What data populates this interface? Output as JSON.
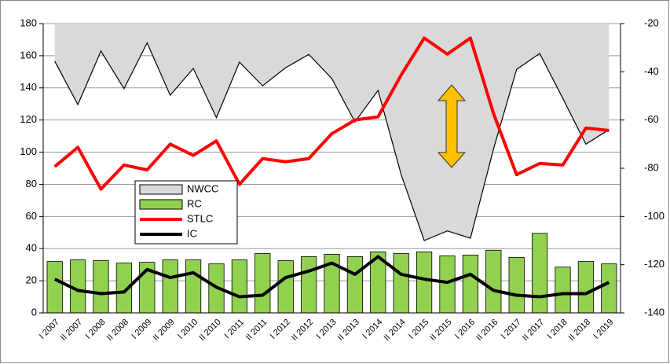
{
  "chart_data": {
    "type": "combo",
    "categories": [
      "I 2007",
      "II 2007",
      "I 2008",
      "II 2008",
      "I 2009",
      "II 2009",
      "I 2010",
      "II 2010",
      "I 2011",
      "II 2011",
      "I 2012",
      "II 2012",
      "I 2013",
      "II 2013",
      "I 2014",
      "II 2014",
      "I 2015",
      "II 2015",
      "I 2016",
      "II 2016",
      "I 2017",
      "II 2017",
      "I 2018",
      "II 2018",
      "I 2019"
    ],
    "series": [
      {
        "name": "NWCC",
        "type": "area",
        "axis": "y2",
        "color": "#d9d9d9",
        "values": [
          -35.6,
          -53.6,
          -31.4,
          -47,
          -28,
          -49.7,
          -38.6,
          -59,
          -36,
          -45.8,
          -38.3,
          -32.8,
          -42.8,
          -60.8,
          -47.7,
          -82.6,
          -110,
          -106,
          -109,
          -72,
          -39,
          -32.4,
          -51,
          -70,
          -64
        ]
      },
      {
        "name": "RC",
        "type": "bar",
        "color": "#92d050",
        "values": [
          32,
          33,
          32.5,
          31,
          31.5,
          33,
          33,
          30.5,
          33,
          37,
          32.5,
          35,
          36.5,
          35,
          38,
          37,
          38,
          35.5,
          36,
          39,
          34.5,
          49.5,
          28.5,
          32,
          30.5
        ]
      },
      {
        "name": "STLC",
        "type": "line",
        "color": "#ff0000",
        "values": [
          91,
          103,
          77,
          92,
          89,
          105,
          98,
          107,
          80,
          96,
          94,
          96,
          111.5,
          120,
          122,
          148,
          171,
          161,
          171,
          124,
          86,
          93,
          92,
          115,
          113.5
        ]
      },
      {
        "name": "IC",
        "type": "line",
        "color": "#000000",
        "values": [
          21,
          14,
          12,
          13,
          27,
          22,
          25,
          16,
          10,
          11,
          22,
          26,
          31,
          24,
          35,
          24,
          21,
          19,
          24,
          14,
          11,
          10,
          12,
          12,
          19
        ]
      }
    ],
    "ylim": [
      0,
      180
    ],
    "yticks": [
      0,
      20,
      40,
      60,
      80,
      100,
      120,
      140,
      160,
      180
    ],
    "y2lim": [
      -140,
      -20
    ],
    "y2ticks": [
      -140,
      -120,
      -100,
      -80,
      -60,
      -40,
      -20
    ],
    "grid": true
  }
}
